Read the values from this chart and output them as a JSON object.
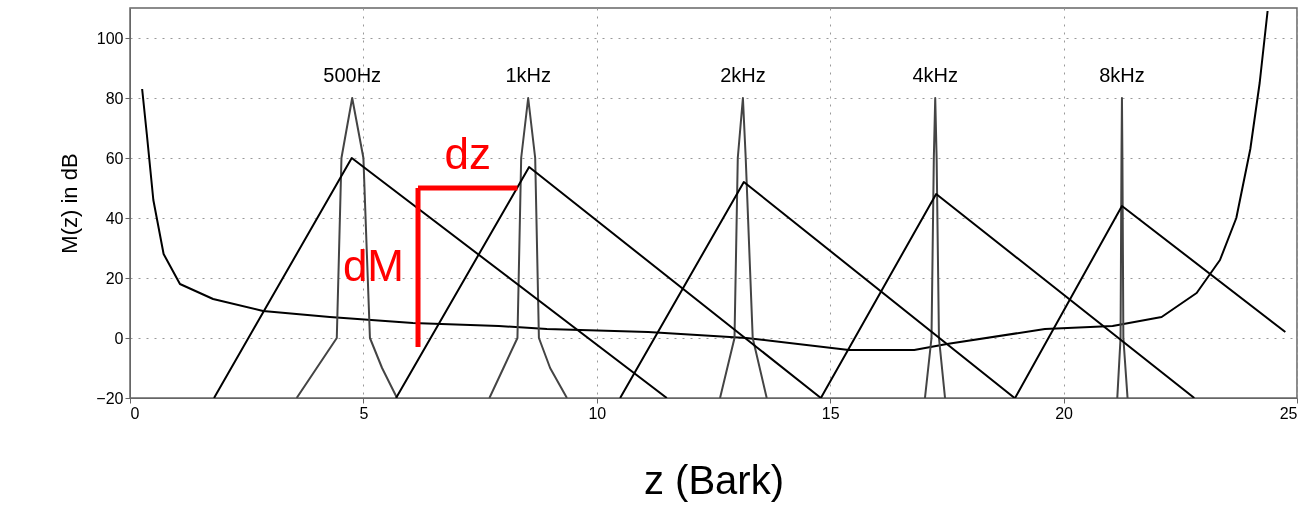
{
  "chart_data": {
    "type": "line",
    "xlabel": "z (Bark)",
    "ylabel": "M(z) in dB",
    "xlim": [
      0,
      25
    ],
    "ylim": [
      -20,
      110
    ],
    "xticks": [
      0,
      5,
      10,
      15,
      20,
      25
    ],
    "yticks": [
      -20,
      0,
      20,
      40,
      60,
      80,
      100
    ],
    "grid": true,
    "marker": "none",
    "line_style": "solid",
    "series": [
      {
        "color": "#000000",
        "x": [
          0.26,
          0.36,
          0.5,
          0.72,
          1.07,
          1.78,
          2.85,
          4.28,
          6.06,
          7.9,
          8.93,
          11.1,
          13.2,
          15.4,
          16.8,
          17.5,
          19.6,
          21.05,
          22.1,
          22.85,
          23.35,
          23.7,
          24.0,
          24.2,
          24.37
        ],
        "values": [
          83,
          68,
          46,
          28,
          18,
          13,
          9,
          7,
          5,
          4,
          3,
          2,
          0,
          -4,
          -4,
          -2,
          3,
          4,
          7,
          15,
          26,
          40,
          63,
          85,
          109
        ]
      },
      {
        "name": "500Hz",
        "color": "#444444",
        "x": [
          3.57,
          4.0,
          4.43,
          4.53,
          4.76,
          5.0,
          5.14,
          5.4,
          5.72
        ],
        "values": [
          -20,
          -10,
          0,
          60,
          80,
          60,
          0,
          -10,
          -20
        ]
      },
      {
        "name": "1kHz",
        "color": "#444444",
        "x": [
          7.7,
          8.0,
          8.3,
          8.38,
          8.53,
          8.68,
          8.76,
          9.0,
          9.36
        ],
        "values": [
          -20,
          -10,
          0,
          60,
          80,
          60,
          0,
          -10,
          -20
        ]
      },
      {
        "name": "2kHz",
        "color": "#444444",
        "x": [
          12.64,
          12.95,
          13.02,
          13.13,
          13.19,
          13.34,
          13.64
        ],
        "values": [
          -20,
          0,
          60,
          80,
          60,
          0,
          -20
        ]
      },
      {
        "name": "4kHz",
        "color": "#444444",
        "x": [
          17.03,
          17.17,
          17.22,
          17.25,
          17.28,
          17.33,
          17.46
        ],
        "values": [
          -20,
          0,
          60,
          80,
          60,
          0,
          -20
        ]
      },
      {
        "name": "8kHz",
        "color": "#444444",
        "x": [
          21.15,
          21.22,
          21.24,
          21.25,
          21.26,
          21.28,
          21.37
        ],
        "values": [
          -20,
          0,
          60,
          80,
          60,
          0,
          -20
        ]
      },
      {
        "color": "#000000",
        "x": [
          1.8,
          4.75,
          11.5
        ],
        "values": [
          -20,
          60,
          -20
        ]
      },
      {
        "color": "#000000",
        "x": [
          5.7,
          8.55,
          14.8
        ],
        "values": [
          -20,
          57,
          -20
        ]
      },
      {
        "color": "#000000",
        "x": [
          10.5,
          13.15,
          18.95
        ],
        "values": [
          -20,
          52,
          -20
        ]
      },
      {
        "color": "#000000",
        "x": [
          14.8,
          17.27,
          22.8
        ],
        "values": [
          -20,
          48,
          -20
        ]
      },
      {
        "color": "#000000",
        "x": [
          18.96,
          21.25,
          24.75
        ],
        "values": [
          -20,
          44,
          2
        ]
      },
      {
        "name": "dM",
        "color": "#ff0000",
        "x": [
          6.17,
          6.17
        ],
        "values": [
          -3,
          50
        ]
      },
      {
        "name": "dz",
        "color": "#ff0000",
        "x": [
          6.17,
          8.3
        ],
        "values": [
          50,
          50
        ]
      }
    ]
  }
}
